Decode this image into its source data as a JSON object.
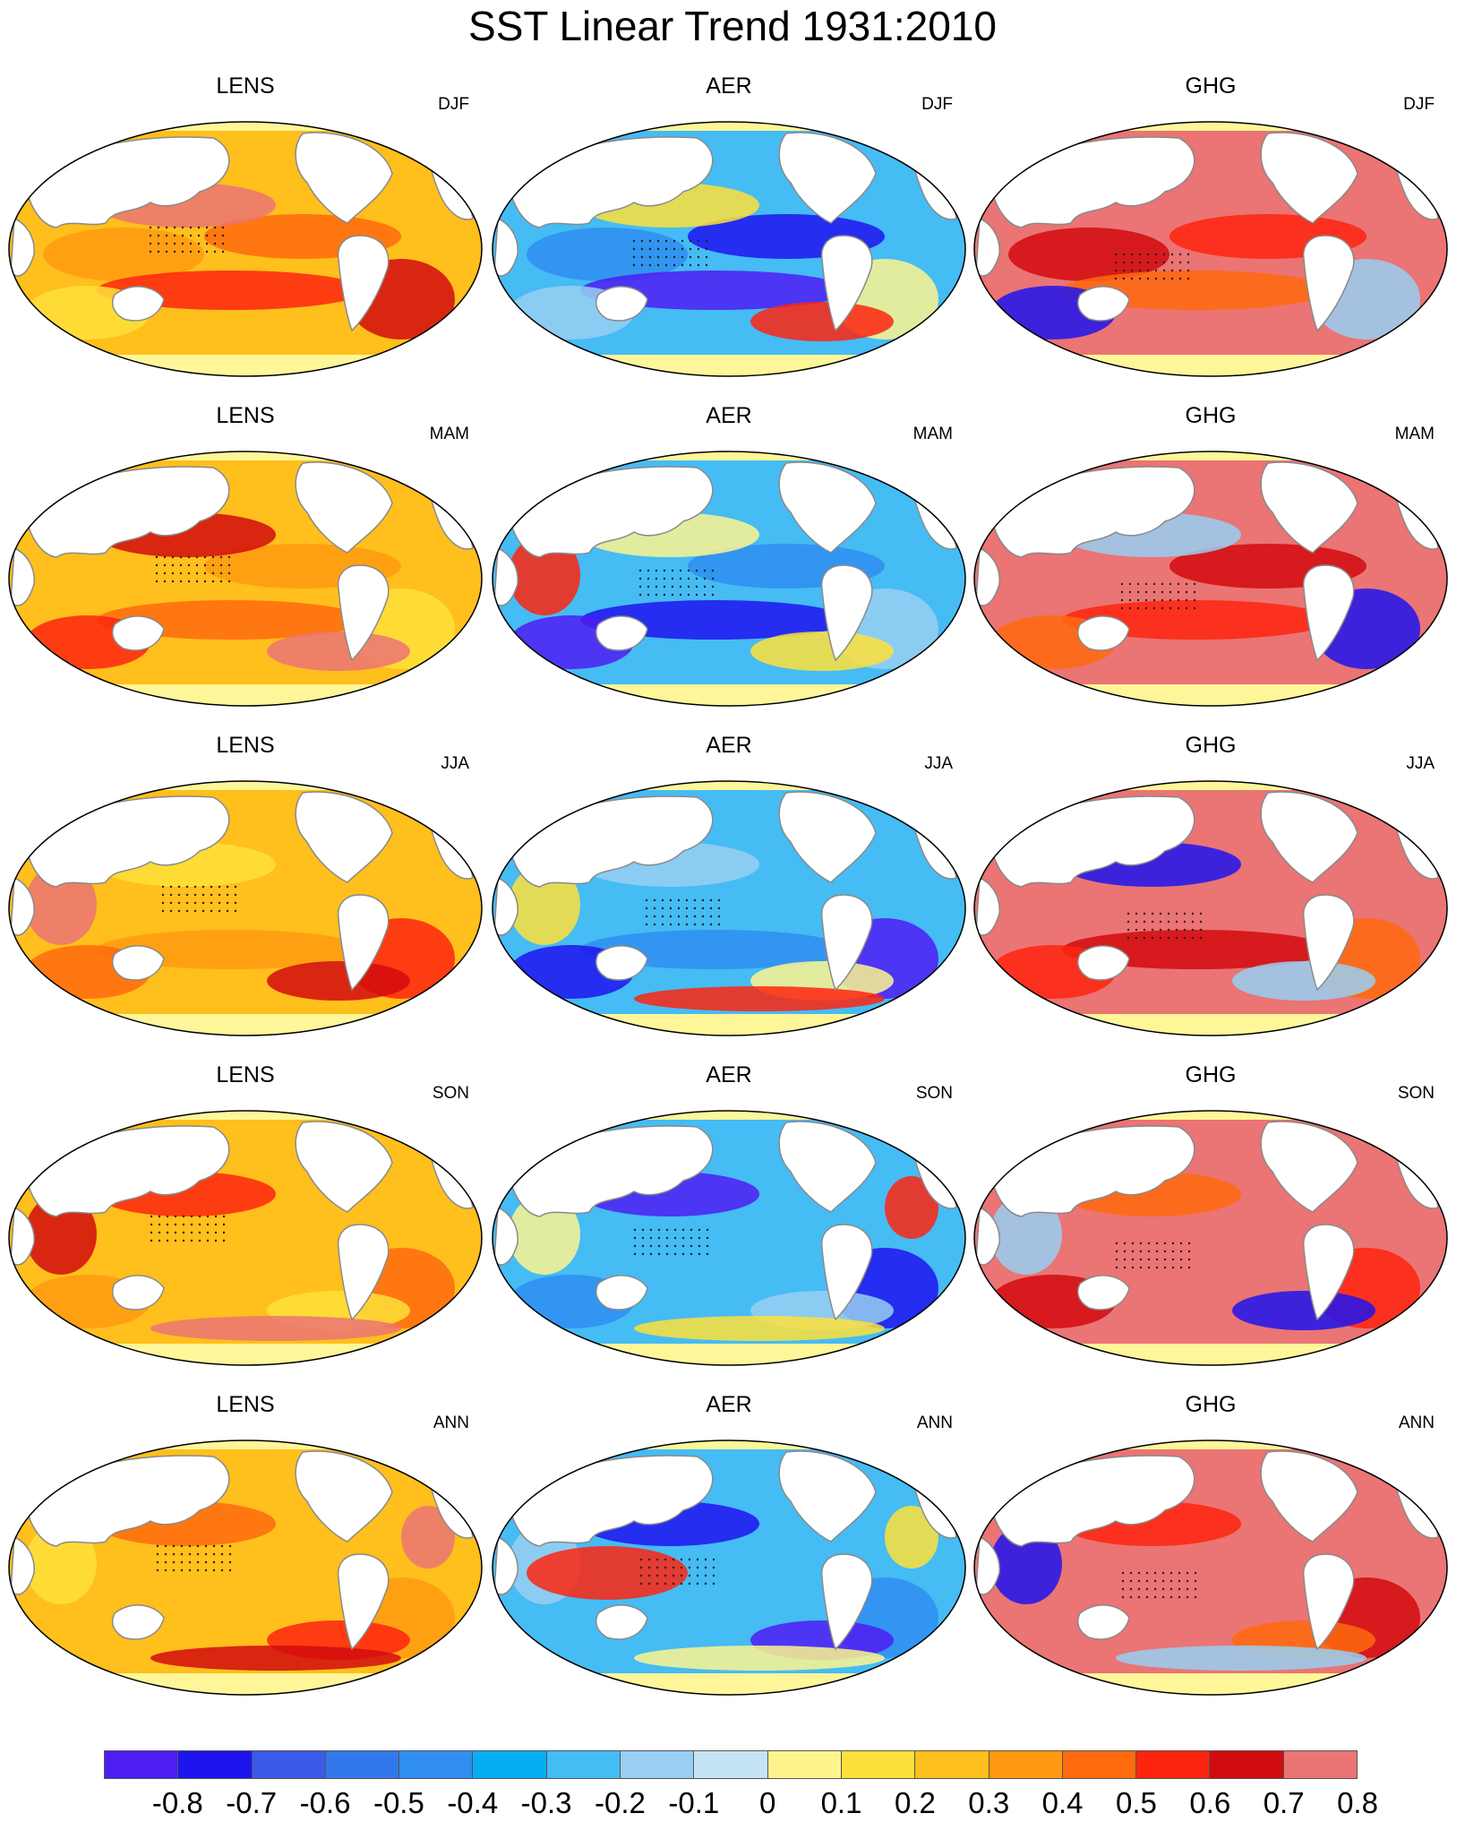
{
  "title": "SST Linear Trend 1931:2010",
  "models": [
    "LENS",
    "AER",
    "GHG"
  ],
  "seasons": [
    "DJF",
    "MAM",
    "JJA",
    "SON",
    "ANN"
  ],
  "colorbar": {
    "labels": [
      "-0.8",
      "-0.7",
      "-0.6",
      "-0.5",
      "-0.4",
      "-0.3",
      "-0.2",
      "-0.1",
      "0",
      "0.1",
      "0.2",
      "0.3",
      "0.4",
      "0.5",
      "0.6",
      "0.7",
      "0.8"
    ],
    "colors": [
      "#4d1df2",
      "#1e14ee",
      "#3c5ae8",
      "#3278eb",
      "#2f8ef0",
      "#05aef2",
      "#45bcf4",
      "#98cff2",
      "#c4e4f6",
      "#fdf48e",
      "#fee03a",
      "#ffbf1c",
      "#ff9a12",
      "#ff6a0e",
      "#fe250f",
      "#d20b0e",
      "#eb7474"
    ]
  },
  "land_colors": {
    "continent": "#ffffff",
    "antarctica": "#fef699",
    "coast": "#8a8a8a"
  },
  "panel_palettes": {
    "LENS": {
      "base": "#ffbf1c",
      "patches": [
        "#ff9a12",
        "#ff6a0e",
        "#fe250f",
        "#fee03a",
        "#d20b0e",
        "#eb7474"
      ]
    },
    "AER": {
      "base": "#45bcf4",
      "patches": [
        "#2f8ef0",
        "#1e14ee",
        "#4d1df2",
        "#98cff2",
        "#fdf48e",
        "#fee03a",
        "#fe250f"
      ]
    },
    "GHG": {
      "base": "#eb7474",
      "patches": [
        "#d20b0e",
        "#fe250f",
        "#ff6a0e",
        "#1e14ee",
        "#98cff2"
      ]
    }
  }
}
